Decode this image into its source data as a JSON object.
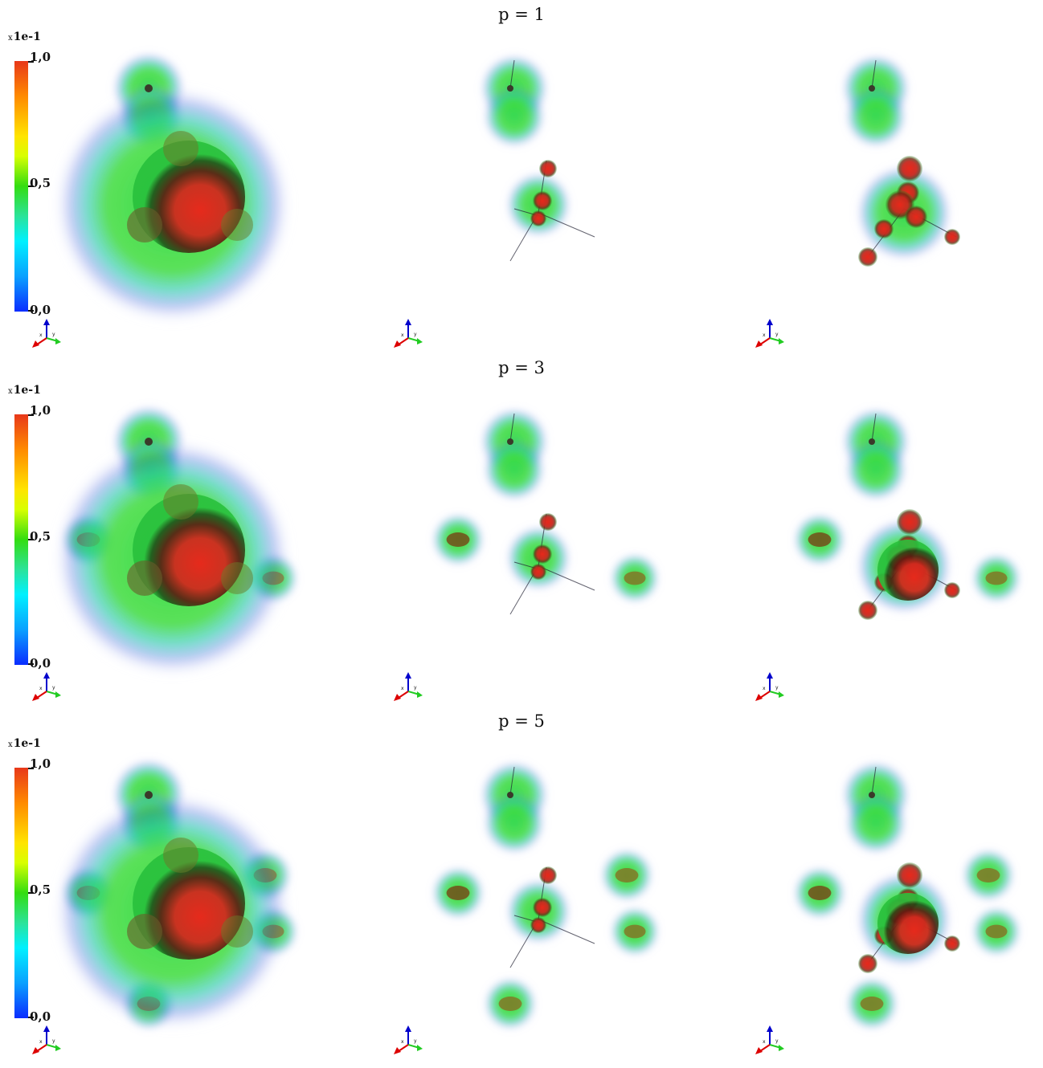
{
  "rows": [
    {
      "title": "p = 1"
    },
    {
      "title": "p = 3"
    },
    {
      "title": "p = 5"
    }
  ],
  "colorbar": {
    "multiplier_prefix": "x",
    "multiplier": "1e-1",
    "max_label": "1,0",
    "mid_label": "0,5",
    "min_label": "0,0",
    "range": [
      0.0,
      1.0
    ]
  },
  "axes_labels": {
    "x": "x",
    "y": "y",
    "z": "z"
  },
  "colors": {
    "high": "#e8381a",
    "mid": "#33dd11",
    "low": "#0a2cff",
    "axis_x": "#dd0000",
    "axis_y": "#22cc22",
    "axis_z": "#0000cc"
  }
}
